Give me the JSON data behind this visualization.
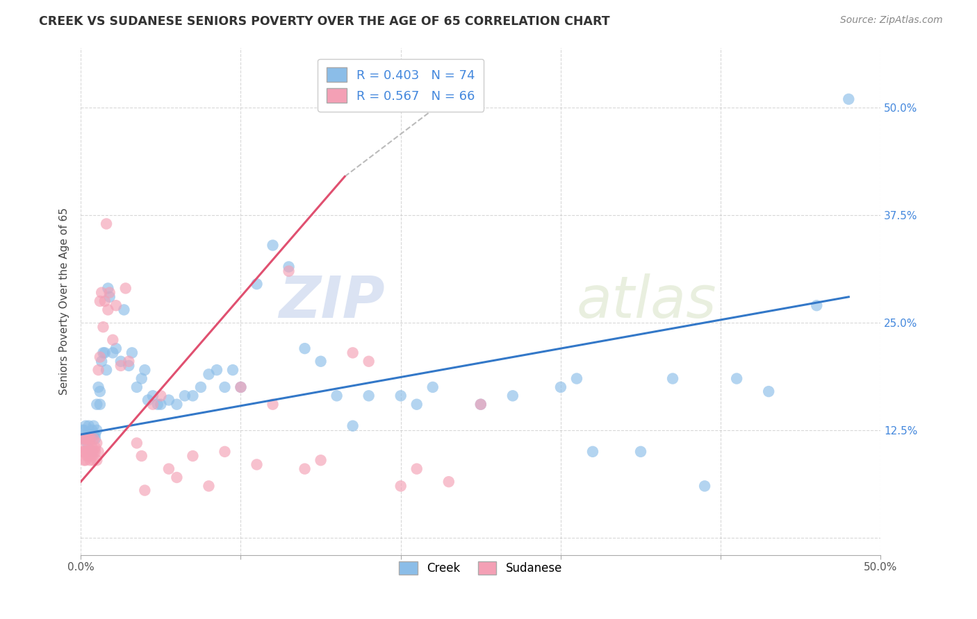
{
  "title": "CREEK VS SUDANESE SENIORS POVERTY OVER THE AGE OF 65 CORRELATION CHART",
  "source": "Source: ZipAtlas.com",
  "ylabel": "Seniors Poverty Over the Age of 65",
  "xlim": [
    0.0,
    0.5
  ],
  "ylim": [
    -0.02,
    0.57
  ],
  "xticks": [
    0.0,
    0.1,
    0.2,
    0.3,
    0.4,
    0.5
  ],
  "yticks": [
    0.0,
    0.125,
    0.25,
    0.375,
    0.5
  ],
  "creek_color": "#8bbde8",
  "sudanese_color": "#f4a0b5",
  "creek_line_color": "#3378c8",
  "sudanese_line_color": "#e05070",
  "creek_R": 0.403,
  "creek_N": 74,
  "sudanese_R": 0.567,
  "sudanese_N": 66,
  "background_color": "#ffffff",
  "grid_color": "#c8c8c8",
  "watermark_zip": "ZIP",
  "watermark_atlas": "atlas",
  "creek_scatter_x": [
    0.001,
    0.002,
    0.002,
    0.003,
    0.003,
    0.004,
    0.004,
    0.005,
    0.005,
    0.006,
    0.006,
    0.007,
    0.007,
    0.008,
    0.008,
    0.009,
    0.009,
    0.01,
    0.01,
    0.011,
    0.012,
    0.012,
    0.013,
    0.014,
    0.015,
    0.016,
    0.017,
    0.018,
    0.02,
    0.022,
    0.025,
    0.027,
    0.03,
    0.032,
    0.035,
    0.038,
    0.04,
    0.042,
    0.045,
    0.048,
    0.05,
    0.055,
    0.06,
    0.065,
    0.07,
    0.075,
    0.08,
    0.085,
    0.09,
    0.095,
    0.1,
    0.11,
    0.12,
    0.13,
    0.14,
    0.15,
    0.16,
    0.17,
    0.18,
    0.2,
    0.21,
    0.22,
    0.25,
    0.27,
    0.3,
    0.31,
    0.32,
    0.35,
    0.37,
    0.39,
    0.41,
    0.43,
    0.46,
    0.48
  ],
  "creek_scatter_y": [
    0.125,
    0.125,
    0.115,
    0.115,
    0.13,
    0.12,
    0.11,
    0.115,
    0.13,
    0.12,
    0.115,
    0.125,
    0.1,
    0.12,
    0.13,
    0.115,
    0.12,
    0.125,
    0.155,
    0.175,
    0.17,
    0.155,
    0.205,
    0.215,
    0.215,
    0.195,
    0.29,
    0.28,
    0.215,
    0.22,
    0.205,
    0.265,
    0.2,
    0.215,
    0.175,
    0.185,
    0.195,
    0.16,
    0.165,
    0.155,
    0.155,
    0.16,
    0.155,
    0.165,
    0.165,
    0.175,
    0.19,
    0.195,
    0.175,
    0.195,
    0.175,
    0.295,
    0.34,
    0.315,
    0.22,
    0.205,
    0.165,
    0.13,
    0.165,
    0.165,
    0.155,
    0.175,
    0.155,
    0.165,
    0.175,
    0.185,
    0.1,
    0.1,
    0.185,
    0.06,
    0.185,
    0.17,
    0.27,
    0.51
  ],
  "sudanese_scatter_x": [
    0.001,
    0.001,
    0.002,
    0.002,
    0.002,
    0.003,
    0.003,
    0.003,
    0.003,
    0.004,
    0.004,
    0.004,
    0.005,
    0.005,
    0.005,
    0.005,
    0.006,
    0.006,
    0.006,
    0.007,
    0.007,
    0.007,
    0.008,
    0.008,
    0.008,
    0.009,
    0.009,
    0.01,
    0.01,
    0.011,
    0.011,
    0.012,
    0.012,
    0.013,
    0.014,
    0.015,
    0.016,
    0.017,
    0.018,
    0.02,
    0.022,
    0.025,
    0.028,
    0.03,
    0.035,
    0.038,
    0.04,
    0.045,
    0.05,
    0.055,
    0.06,
    0.07,
    0.08,
    0.09,
    0.1,
    0.11,
    0.12,
    0.13,
    0.14,
    0.15,
    0.17,
    0.18,
    0.2,
    0.21,
    0.23,
    0.25
  ],
  "sudanese_scatter_y": [
    0.115,
    0.1,
    0.1,
    0.115,
    0.09,
    0.1,
    0.115,
    0.09,
    0.105,
    0.1,
    0.115,
    0.095,
    0.105,
    0.095,
    0.115,
    0.1,
    0.1,
    0.115,
    0.09,
    0.1,
    0.105,
    0.095,
    0.1,
    0.09,
    0.115,
    0.1,
    0.105,
    0.11,
    0.09,
    0.1,
    0.195,
    0.21,
    0.275,
    0.285,
    0.245,
    0.275,
    0.365,
    0.265,
    0.285,
    0.23,
    0.27,
    0.2,
    0.29,
    0.205,
    0.11,
    0.095,
    0.055,
    0.155,
    0.165,
    0.08,
    0.07,
    0.095,
    0.06,
    0.1,
    0.175,
    0.085,
    0.155,
    0.31,
    0.08,
    0.09,
    0.215,
    0.205,
    0.06,
    0.08,
    0.065,
    0.155
  ]
}
